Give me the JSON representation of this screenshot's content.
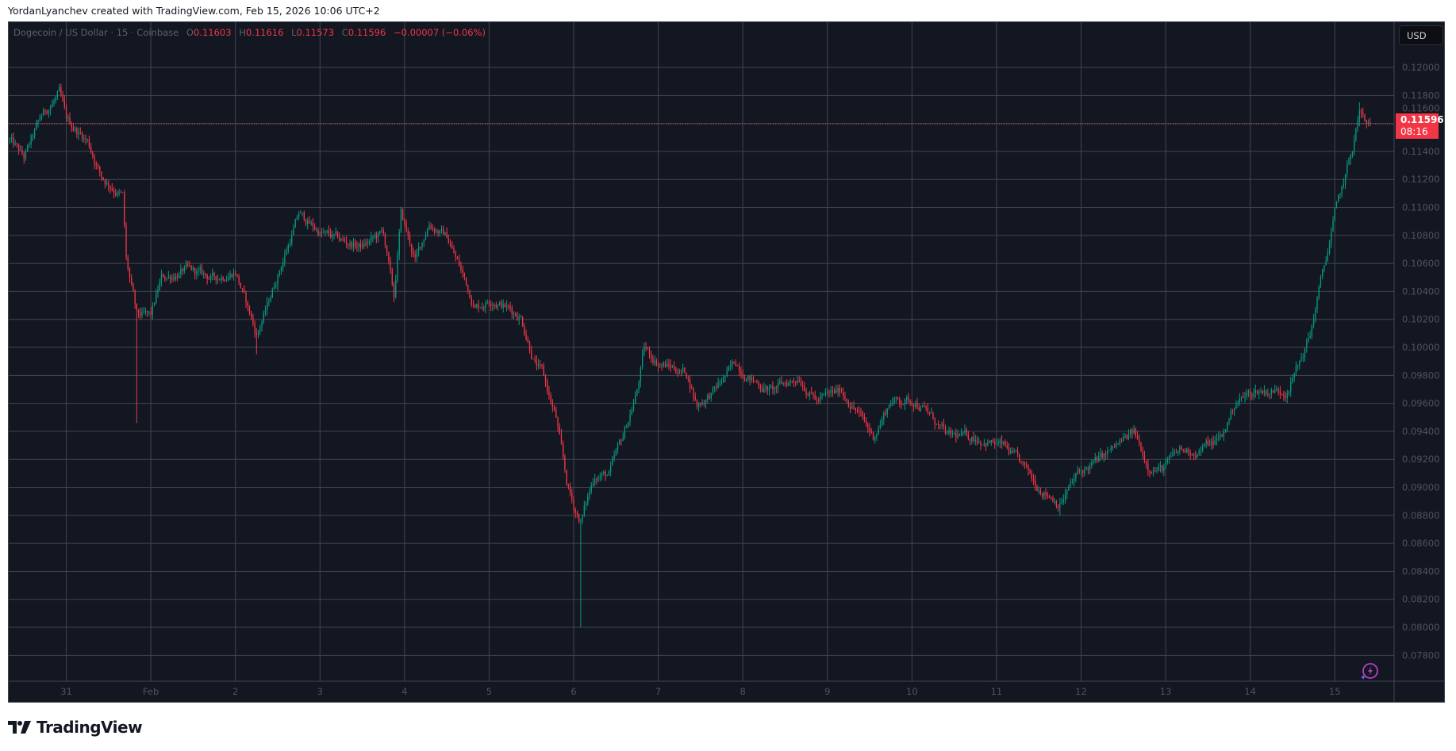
{
  "caption": "YordanLyanchev created with TradingView.com, Feb 15, 2026 10:06 UTC+2",
  "legend": {
    "symbol": "Dogecoin / US Dollar · 15 · Coinbase",
    "o_label": "O",
    "open": "0.11603",
    "h_label": "H",
    "high": "0.11616",
    "l_label": "L",
    "low": "0.11573",
    "c_label": "C",
    "close": "0.11596",
    "change": "−0.00007 (−0.06%)"
  },
  "currency_button": "USD",
  "price_tag": {
    "price": "0.11596",
    "countdown": "08:16"
  },
  "logo_text": "TradingView",
  "colors": {
    "background": "#131722",
    "up": "#089981",
    "down": "#f23645",
    "grid": "#434651",
    "axis_text": "#50535e",
    "price_line": "#f23645"
  },
  "icons": {
    "assistant": "lightning-bolt-icon",
    "logo": "tradingview-logo-icon"
  },
  "chart_data": {
    "type": "candlestick",
    "interval": "15",
    "title": "Dogecoin / US Dollar · 15 · Coinbase",
    "ylim": [
      0.07615,
      0.12323
    ],
    "xlim": [
      "2026-01-30T07:40",
      "2026-02-15T16:50"
    ],
    "grid": true,
    "y_ticks": [
      "0.12000",
      "0.11800",
      "0.11600",
      "0.11400",
      "0.11200",
      "0.11000",
      "0.10800",
      "0.10600",
      "0.10400",
      "0.10200",
      "0.10000",
      "0.09800",
      "0.09600",
      "0.09400",
      "0.09200",
      "0.09000",
      "0.08800",
      "0.08600",
      "0.08400",
      "0.08200",
      "0.08000",
      "0.07800"
    ],
    "x_ticks": [
      {
        "label": "31",
        "time": "2026-01-31T00:00"
      },
      {
        "label": "Feb",
        "time": "2026-02-01T00:00"
      },
      {
        "label": "2",
        "time": "2026-02-02T00:00"
      },
      {
        "label": "3",
        "time": "2026-02-03T00:00"
      },
      {
        "label": "4",
        "time": "2026-02-04T00:00"
      },
      {
        "label": "5",
        "time": "2026-02-05T00:00"
      },
      {
        "label": "6",
        "time": "2026-02-06T00:00"
      },
      {
        "label": "7",
        "time": "2026-02-07T00:00"
      },
      {
        "label": "8",
        "time": "2026-02-08T00:00"
      },
      {
        "label": "9",
        "time": "2026-02-09T00:00"
      },
      {
        "label": "10",
        "time": "2026-02-10T00:00"
      },
      {
        "label": "11",
        "time": "2026-02-11T00:00"
      },
      {
        "label": "12",
        "time": "2026-02-12T00:00"
      },
      {
        "label": "13",
        "time": "2026-02-13T00:00"
      },
      {
        "label": "14",
        "time": "2026-02-14T00:00"
      },
      {
        "label": "15",
        "time": "2026-02-15T00:00"
      }
    ],
    "last_price": 0.11596,
    "price_path": [
      [
        "2026-01-30T08:00",
        0.1148
      ],
      [
        "2026-01-30T12:00",
        0.1135
      ],
      [
        "2026-01-30T17:00",
        0.1165
      ],
      [
        "2026-01-30T22:00",
        0.1181
      ],
      [
        "2026-01-31T00:00",
        0.1162
      ],
      [
        "2026-01-31T06:00",
        0.1148
      ],
      [
        "2026-01-31T10:00",
        0.1122
      ],
      [
        "2026-01-31T16:00",
        0.1108
      ],
      [
        "2026-01-31T17:00",
        0.1062
      ],
      [
        "2026-01-31T20:00",
        0.1022
      ],
      [
        "2026-02-01T00:00",
        0.1022
      ],
      [
        "2026-02-01T03:00",
        0.1049
      ],
      [
        "2026-02-01T10:00",
        0.1055
      ],
      [
        "2026-02-01T18:00",
        0.1049
      ],
      [
        "2026-02-02T00:00",
        0.1055
      ],
      [
        "2026-02-02T06:00",
        0.1009
      ],
      [
        "2026-02-02T09:00",
        0.1029
      ],
      [
        "2026-02-02T12:00",
        0.1052
      ],
      [
        "2026-02-02T18:00",
        0.1095
      ],
      [
        "2026-02-03T00:00",
        0.1082
      ],
      [
        "2026-02-03T07:00",
        0.1075
      ],
      [
        "2026-02-03T12:00",
        0.1072
      ],
      [
        "2026-02-03T18:00",
        0.1082
      ],
      [
        "2026-02-03T21:00",
        0.1035
      ],
      [
        "2026-02-03T23:00",
        0.1095
      ],
      [
        "2026-02-04T03:00",
        0.1062
      ],
      [
        "2026-02-04T07:00",
        0.1089
      ],
      [
        "2026-02-04T12:00",
        0.1079
      ],
      [
        "2026-02-04T17:00",
        0.1049
      ],
      [
        "2026-02-04T20:00",
        0.1029
      ],
      [
        "2026-02-05T01:00",
        0.1035
      ],
      [
        "2026-02-05T09:00",
        0.1022
      ],
      [
        "2026-02-05T13:00",
        0.0989
      ],
      [
        "2026-02-05T15:00",
        0.0982
      ],
      [
        "2026-02-05T19:00",
        0.0949
      ],
      [
        "2026-02-05T22:00",
        0.0903
      ],
      [
        "2026-02-06T00:00",
        0.0886
      ],
      [
        "2026-02-06T02:00",
        0.0876
      ],
      [
        "2026-02-06T06:00",
        0.0909
      ],
      [
        "2026-02-06T10:00",
        0.0909
      ],
      [
        "2026-02-06T14:00",
        0.0936
      ],
      [
        "2026-02-06T18:00",
        0.0969
      ],
      [
        "2026-02-06T20:00",
        0.0999
      ],
      [
        "2026-02-07T00:00",
        0.0989
      ],
      [
        "2026-02-07T08:00",
        0.0982
      ],
      [
        "2026-02-07T11:00",
        0.0959
      ],
      [
        "2026-02-07T16:00",
        0.0969
      ],
      [
        "2026-02-07T22:00",
        0.0989
      ],
      [
        "2026-02-08T03:00",
        0.0976
      ],
      [
        "2026-02-08T08:00",
        0.0969
      ],
      [
        "2026-02-08T16:00",
        0.0979
      ],
      [
        "2026-02-08T21:00",
        0.0962
      ],
      [
        "2026-02-09T04:00",
        0.0969
      ],
      [
        "2026-02-09T08:00",
        0.0956
      ],
      [
        "2026-02-09T13:00",
        0.0936
      ],
      [
        "2026-02-09T18:00",
        0.0962
      ],
      [
        "2026-02-10T01:00",
        0.0962
      ],
      [
        "2026-02-10T05:00",
        0.0952
      ],
      [
        "2026-02-10T10:00",
        0.0936
      ],
      [
        "2026-02-10T18:00",
        0.0936
      ],
      [
        "2026-02-11T02:00",
        0.0929
      ],
      [
        "2026-02-11T07:00",
        0.0916
      ],
      [
        "2026-02-11T11:00",
        0.0903
      ],
      [
        "2026-02-11T18:00",
        0.0889
      ],
      [
        "2026-02-11T23:00",
        0.0909
      ],
      [
        "2026-02-12T07:00",
        0.0923
      ],
      [
        "2026-02-12T15:00",
        0.0939
      ],
      [
        "2026-02-12T19:00",
        0.0916
      ],
      [
        "2026-02-12T23:00",
        0.0913
      ],
      [
        "2026-02-13T04:00",
        0.0926
      ],
      [
        "2026-02-13T09:00",
        0.0926
      ],
      [
        "2026-02-13T16:00",
        0.0936
      ],
      [
        "2026-02-13T20:00",
        0.0962
      ],
      [
        "2026-02-14T02:00",
        0.0969
      ],
      [
        "2026-02-14T10:00",
        0.0969
      ],
      [
        "2026-02-14T14:00",
        0.0989
      ],
      [
        "2026-02-14T17:00",
        0.1009
      ],
      [
        "2026-02-14T19:00",
        0.1035
      ],
      [
        "2026-02-14T22:00",
        0.1069
      ],
      [
        "2026-02-15T00:00",
        0.1095
      ],
      [
        "2026-02-15T03:00",
        0.1122
      ],
      [
        "2026-02-15T05:00",
        0.1142
      ],
      [
        "2026-02-15T07:00",
        0.1168
      ],
      [
        "2026-02-15T09:00",
        0.1158
      ],
      [
        "2026-02-15T10:00",
        0.11596
      ]
    ],
    "extreme_wicks": [
      [
        "2026-01-30T22:00",
        0.1184
      ],
      [
        "2026-01-31T20:00",
        0.0946
      ],
      [
        "2026-02-02T06:00",
        0.0995
      ],
      [
        "2026-02-06T02:00",
        0.08
      ],
      [
        "2026-02-11T18:00",
        0.088
      ],
      [
        "2026-02-15T07:00",
        0.1175
      ]
    ]
  }
}
